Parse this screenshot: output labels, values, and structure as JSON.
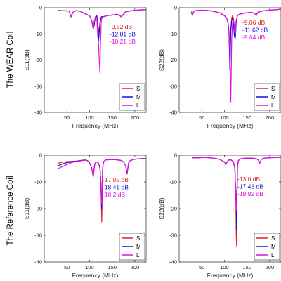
{
  "row_labels": [
    "The WEAR Coil",
    "The Reference Coil"
  ],
  "colors": {
    "S": "#e02020",
    "M": "#1010e0",
    "L": "#e010e0"
  },
  "chart_data": [
    {
      "type": "line",
      "panel": "top-left",
      "xlabel": "Frequency (MHz)",
      "ylabel": "S11(dB)",
      "xlim": [
        0,
        225
      ],
      "ylim": [
        -40,
        0
      ],
      "xticks": [
        50,
        100,
        150,
        200
      ],
      "yticks": [
        0,
        -10,
        -20,
        -30,
        -40
      ],
      "legend_position": "bottom-right",
      "grid": false,
      "annotations": [
        {
          "text": "-9.52 dB",
          "series": "S"
        },
        {
          "text": "-12.81 dB",
          "series": "M"
        },
        {
          "text": "-10.21 dB",
          "series": "L"
        }
      ],
      "series": [
        {
          "name": "S",
          "color": "#e02020",
          "x": [
            30,
            55,
            59,
            63,
            70,
            80,
            90,
            100,
            105,
            108,
            110,
            113,
            116,
            118,
            120,
            122,
            124,
            126,
            130,
            140,
            150,
            160,
            165,
            170,
            175,
            180,
            190,
            200,
            215,
            225
          ],
          "y": [
            -1,
            -1.3,
            -3.5,
            -1.8,
            -1.1,
            -1.4,
            -2.3,
            -3,
            -5,
            -8,
            -7,
            -3.5,
            -3,
            -5,
            -9.52,
            -7.5,
            -4.5,
            -3.4,
            -3.4,
            -3,
            -2.8,
            -2.5,
            -2.7,
            -3.4,
            -2.4,
            -1.5,
            -1.2,
            -1,
            -0.8,
            -0.7
          ]
        },
        {
          "name": "M",
          "color": "#1010e0",
          "x": [
            30,
            55,
            59,
            63,
            70,
            80,
            90,
            100,
            105,
            108,
            110,
            113,
            116,
            118,
            120,
            122,
            124,
            126,
            130,
            140,
            150,
            160,
            165,
            170,
            175,
            180,
            190,
            200,
            215,
            225
          ],
          "y": [
            -1,
            -1.3,
            -3.5,
            -1.8,
            -1.1,
            -1.4,
            -2.3,
            -3,
            -5,
            -8,
            -6.5,
            -3.5,
            -3.2,
            -6,
            -12.81,
            -8,
            -4.6,
            -3.5,
            -3.5,
            -3,
            -2.8,
            -2.6,
            -2.8,
            -3.5,
            -2.5,
            -1.5,
            -1.2,
            -1,
            -0.8,
            -0.7
          ]
        },
        {
          "name": "L",
          "color": "#e010e0",
          "x": [
            30,
            55,
            59,
            63,
            70,
            80,
            90,
            100,
            105,
            108,
            110,
            113,
            116,
            118,
            120,
            122,
            123,
            124,
            126,
            130,
            140,
            150,
            160,
            165,
            170,
            175,
            180,
            190,
            200,
            215,
            225
          ],
          "y": [
            -1,
            -1.3,
            -3.5,
            -1.8,
            -1.1,
            -1.4,
            -2.3,
            -3,
            -5,
            -8,
            -5.5,
            -3.5,
            -4,
            -10.21,
            -14,
            -22,
            -25,
            -15,
            -4.5,
            -3.5,
            -3,
            -2.8,
            -2.6,
            -2.8,
            -3.5,
            -2.5,
            -1.5,
            -1.2,
            -1,
            -0.8,
            -0.7
          ]
        }
      ]
    },
    {
      "type": "line",
      "panel": "top-right",
      "xlabel": "Frequency (MHz)",
      "ylabel": "S22(dB)",
      "xlim": [
        0,
        225
      ],
      "ylim": [
        -40,
        0
      ],
      "xticks": [
        50,
        100,
        150,
        200
      ],
      "yticks": [
        0,
        -10,
        -20,
        -30,
        -40
      ],
      "legend_position": "bottom-right",
      "grid": false,
      "annotations": [
        {
          "text": "-9.06 dB",
          "series": "S"
        },
        {
          "text": "-11.62 dB",
          "series": "M"
        },
        {
          "text": "-9.64 dB",
          "series": "L"
        }
      ],
      "series": [
        {
          "name": "S",
          "color": "#e02020",
          "x": [
            27,
            29,
            31,
            35,
            40,
            50,
            60,
            70,
            80,
            90,
            100,
            105,
            108,
            110,
            112,
            114,
            116,
            118,
            120,
            122,
            124,
            126,
            128,
            130,
            132,
            135,
            140,
            150,
            160,
            165,
            168,
            170,
            172,
            175,
            185,
            200,
            225
          ],
          "y": [
            -1.5,
            -3,
            -1.8,
            -1.2,
            -1,
            -1,
            -1,
            -1.2,
            -1.5,
            -2,
            -3,
            -4,
            -6,
            -9,
            -20,
            -8,
            -4,
            -3,
            -4,
            -7,
            -9.06,
            -5,
            -3.5,
            -2.8,
            -2.6,
            -2.4,
            -2.2,
            -1.9,
            -1.8,
            -2,
            -2.5,
            -3,
            -2.3,
            -1.6,
            -1.2,
            -0.9,
            -0.6
          ]
        },
        {
          "name": "M",
          "color": "#1010e0",
          "x": [
            27,
            29,
            31,
            35,
            40,
            50,
            60,
            70,
            80,
            90,
            100,
            105,
            108,
            110,
            112,
            114,
            116,
            118,
            120,
            122,
            124,
            126,
            128,
            130,
            132,
            135,
            140,
            150,
            160,
            165,
            168,
            170,
            172,
            175,
            185,
            200,
            225
          ],
          "y": [
            -1.5,
            -3,
            -1.8,
            -1.2,
            -1,
            -1,
            -1,
            -1.2,
            -1.5,
            -2,
            -3,
            -4,
            -6,
            -9,
            -24,
            -9,
            -5,
            -4,
            -6,
            -11,
            -11.62,
            -6,
            -3.5,
            -2.8,
            -2.6,
            -2.4,
            -2.2,
            -1.9,
            -1.8,
            -2,
            -2.5,
            -3,
            -2.3,
            -1.6,
            -1.2,
            -0.9,
            -0.6
          ]
        },
        {
          "name": "L",
          "color": "#e010e0",
          "x": [
            27,
            29,
            31,
            35,
            40,
            50,
            60,
            70,
            80,
            90,
            100,
            105,
            108,
            110,
            112,
            114,
            116,
            118,
            120,
            122,
            124,
            126,
            128,
            130,
            132,
            135,
            140,
            150,
            160,
            165,
            168,
            170,
            172,
            175,
            185,
            200,
            225
          ],
          "y": [
            -1.5,
            -3,
            -1.8,
            -1.2,
            -1,
            -1,
            -1,
            -1.2,
            -1.5,
            -2,
            -3,
            -4,
            -6,
            -9,
            -18,
            -36,
            -12,
            -6,
            -5,
            -7,
            -9.64,
            -5,
            -3.5,
            -2.8,
            -2.6,
            -2.4,
            -2.2,
            -1.9,
            -1.8,
            -2,
            -2.5,
            -3,
            -2.3,
            -1.6,
            -1.2,
            -0.9,
            -0.6
          ]
        }
      ]
    },
    {
      "type": "line",
      "panel": "bottom-left",
      "xlabel": "Frequency (MHz)",
      "ylabel": "S11(dB)",
      "xlim": [
        0,
        225
      ],
      "ylim": [
        -40,
        0
      ],
      "xticks": [
        50,
        100,
        150,
        200
      ],
      "yticks": [
        0,
        -10,
        -20,
        -30,
        -40
      ],
      "legend_position": "bottom-right",
      "grid": false,
      "annotations": [
        {
          "text": "-17.05 dB",
          "series": "S"
        },
        {
          "text": "-18.41 dB",
          "series": "M"
        },
        {
          "text": "-18.2 dB",
          "series": "L"
        }
      ],
      "series": [
        {
          "name": "S",
          "color": "#e02020",
          "x": [
            30,
            40,
            50,
            60,
            70,
            80,
            90,
            95,
            100,
            105,
            108,
            110,
            112,
            115,
            120,
            123,
            125,
            126,
            127,
            128,
            129,
            131,
            135,
            140,
            150,
            160,
            170,
            175,
            180,
            183,
            186,
            190,
            200,
            215,
            225
          ],
          "y": [
            -3,
            -2.6,
            -2.4,
            -2.3,
            -2.2,
            -2,
            -1.8,
            -2,
            -2.8,
            -5,
            -8,
            -5,
            -3,
            -2.5,
            -3,
            -5,
            -10,
            -17.05,
            -25,
            -14,
            -5,
            -2.5,
            -1.8,
            -1.7,
            -1.6,
            -1.7,
            -2,
            -2.5,
            -4,
            -7,
            -3,
            -2,
            -1.5,
            -1.3,
            -1.2
          ]
        },
        {
          "name": "M",
          "color": "#1010e0",
          "x": [
            30,
            40,
            50,
            60,
            70,
            80,
            90,
            95,
            100,
            105,
            108,
            110,
            112,
            115,
            120,
            123,
            125,
            126,
            127,
            128,
            129,
            131,
            135,
            140,
            150,
            160,
            170,
            175,
            180,
            183,
            186,
            190,
            200,
            215,
            225
          ],
          "y": [
            -4,
            -3.3,
            -2.8,
            -2.5,
            -2.3,
            -2,
            -1.8,
            -2,
            -2.8,
            -5,
            -8,
            -5,
            -3,
            -2.5,
            -3,
            -5,
            -10,
            -18.41,
            -20,
            -12,
            -5,
            -2.5,
            -1.8,
            -1.7,
            -1.6,
            -1.7,
            -2,
            -2.5,
            -4,
            -7,
            -3,
            -2,
            -1.5,
            -1.3,
            -1.2
          ]
        },
        {
          "name": "L",
          "color": "#e010e0",
          "x": [
            30,
            40,
            50,
            60,
            70,
            80,
            90,
            95,
            100,
            105,
            108,
            110,
            112,
            115,
            120,
            123,
            125,
            126,
            127,
            128,
            129,
            131,
            135,
            140,
            150,
            160,
            170,
            175,
            180,
            183,
            186,
            190,
            200,
            215,
            225
          ],
          "y": [
            -5,
            -4.3,
            -3.5,
            -2.8,
            -2.4,
            -2.1,
            -1.9,
            -2,
            -2.8,
            -5,
            -8,
            -5,
            -3,
            -2.5,
            -3,
            -5,
            -10,
            -18.2,
            -18.5,
            -12,
            -5,
            -2.5,
            -1.8,
            -1.7,
            -1.6,
            -1.7,
            -2,
            -2.5,
            -4,
            -7,
            -3,
            -2,
            -1.5,
            -1.3,
            -1.2
          ]
        }
      ]
    },
    {
      "type": "line",
      "panel": "bottom-right",
      "xlabel": "Frequency (MHz)",
      "ylabel": "S22(dB)",
      "xlim": [
        0,
        225
      ],
      "ylim": [
        -40,
        0
      ],
      "xticks": [
        50,
        100,
        150,
        200
      ],
      "yticks": [
        0,
        -10,
        -20,
        -30,
        -40
      ],
      "legend_position": "bottom-right",
      "grid": false,
      "annotations": [
        {
          "text": "-13.0 dB",
          "series": "S"
        },
        {
          "text": "-17.43 dB",
          "series": "M"
        },
        {
          "text": "-19.92 dB",
          "series": "L"
        }
      ],
      "series": [
        {
          "name": "S",
          "color": "#e02020",
          "x": [
            30,
            40,
            50,
            60,
            70,
            80,
            90,
            100,
            103,
            106,
            110,
            115,
            120,
            123,
            125,
            126,
            127,
            128,
            129,
            131,
            135,
            140,
            150,
            160,
            170,
            175,
            178,
            181,
            185,
            195,
            210,
            225
          ],
          "y": [
            -1,
            -1,
            -0.9,
            -0.9,
            -1,
            -1.2,
            -1.6,
            -2.5,
            -3.5,
            -2.5,
            -1.8,
            -1.8,
            -2.5,
            -5,
            -13,
            -29,
            -34,
            -13,
            -4,
            -2,
            -1.4,
            -1.2,
            -1.1,
            -1.1,
            -1.3,
            -1.8,
            -3,
            -1.8,
            -1.2,
            -1,
            -0.9,
            -0.8
          ]
        },
        {
          "name": "M",
          "color": "#1010e0",
          "x": [
            30,
            40,
            50,
            60,
            70,
            80,
            90,
            100,
            103,
            106,
            110,
            115,
            120,
            123,
            125,
            126,
            127,
            128,
            129,
            131,
            135,
            140,
            150,
            160,
            170,
            175,
            178,
            181,
            185,
            195,
            210,
            225
          ],
          "y": [
            -1,
            -1,
            -0.9,
            -0.9,
            -1,
            -1.2,
            -1.6,
            -2.5,
            -3.5,
            -2.5,
            -1.8,
            -1.8,
            -2.5,
            -5,
            -14,
            -17.43,
            -28,
            -12,
            -4,
            -2,
            -1.4,
            -1.2,
            -1.1,
            -1.1,
            -1.3,
            -1.8,
            -3,
            -1.8,
            -1.2,
            -1,
            -0.9,
            -0.8
          ]
        },
        {
          "name": "L",
          "color": "#e010e0",
          "x": [
            30,
            40,
            50,
            60,
            70,
            80,
            90,
            100,
            103,
            106,
            110,
            115,
            120,
            123,
            125,
            126,
            127,
            128,
            129,
            131,
            135,
            140,
            150,
            160,
            170,
            175,
            178,
            181,
            185,
            195,
            210,
            225
          ],
          "y": [
            -1,
            -1,
            -0.9,
            -0.9,
            -1,
            -1.2,
            -1.6,
            -2.5,
            -3.5,
            -2.5,
            -1.8,
            -1.8,
            -2.5,
            -5,
            -14,
            -19.92,
            -21,
            -12,
            -4,
            -2,
            -1.4,
            -1.2,
            -1.1,
            -1.1,
            -1.3,
            -1.8,
            -3,
            -1.8,
            -1.2,
            -1,
            -0.9,
            -0.8
          ]
        }
      ]
    }
  ]
}
